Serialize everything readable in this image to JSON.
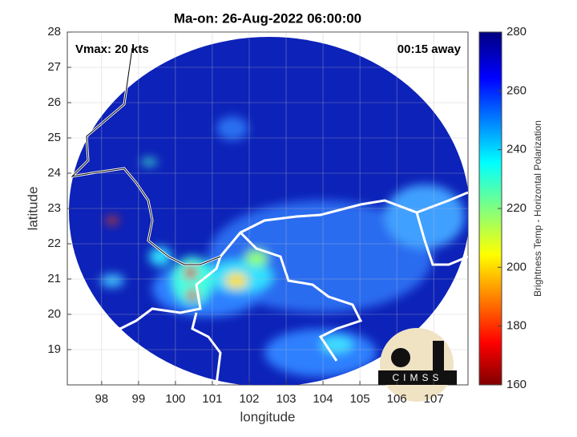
{
  "title": "Ma-on: 26-Aug-2022 06:00:00",
  "annotations": {
    "vmax": "Vmax: 20 kts",
    "time_offset": "00:15 away"
  },
  "map": {
    "xlabel": "longitude",
    "ylabel": "latitude",
    "xlim": [
      97.07,
      107.93
    ],
    "ylim": [
      18,
      28
    ],
    "xticks": [
      98,
      99,
      100,
      101,
      102,
      103,
      104,
      105,
      106,
      107
    ],
    "yticks": [
      19,
      20,
      21,
      22,
      23,
      24,
      25,
      26,
      27,
      28
    ],
    "grid": true
  },
  "colorbar": {
    "label": "Brightness Temp - Horizontal Polarization",
    "clim": [
      160,
      280
    ],
    "ticks": [
      160,
      180,
      200,
      220,
      240,
      260,
      280
    ]
  },
  "logo": {
    "text": "CIMSS"
  }
}
